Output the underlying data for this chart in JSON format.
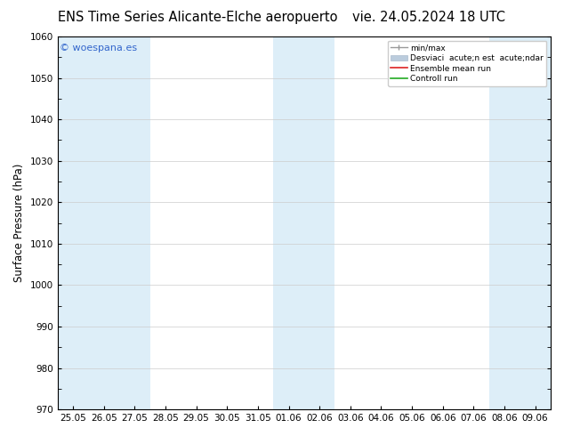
{
  "title_left": "ENS Time Series Alicante-Elche aeropuerto",
  "title_right": "vie. 24.05.2024 18 UTC",
  "ylabel": "Surface Pressure (hPa)",
  "ylim": [
    970,
    1060
  ],
  "yticks": [
    970,
    980,
    990,
    1000,
    1010,
    1020,
    1030,
    1040,
    1050,
    1060
  ],
  "xtick_labels": [
    "25.05",
    "26.05",
    "27.05",
    "28.05",
    "29.05",
    "30.05",
    "31.05",
    "01.06",
    "02.06",
    "03.06",
    "04.06",
    "05.06",
    "06.06",
    "07.06",
    "08.06",
    "09.06"
  ],
  "bg_color": "#ffffff",
  "plot_bg_color": "#ffffff",
  "shaded_color": "#ddeef8",
  "watermark_text": "© woespana.es",
  "watermark_color": "#3366cc",
  "legend_label_minmax": "min/max",
  "legend_label_std": "Desviaci  acute;n est  acute;ndar",
  "legend_label_ens": "Ensemble mean run",
  "legend_label_ctrl": "Controll run",
  "legend_color_minmax": "#999999",
  "legend_color_std": "#bbccdd",
  "legend_color_ens": "#dd2222",
  "legend_color_ctrl": "#22aa22",
  "shaded_indices": [
    0,
    1,
    2,
    7,
    8,
    14,
    15
  ],
  "title_fontsize": 10.5,
  "tick_fontsize": 7.5,
  "ylabel_fontsize": 8.5
}
